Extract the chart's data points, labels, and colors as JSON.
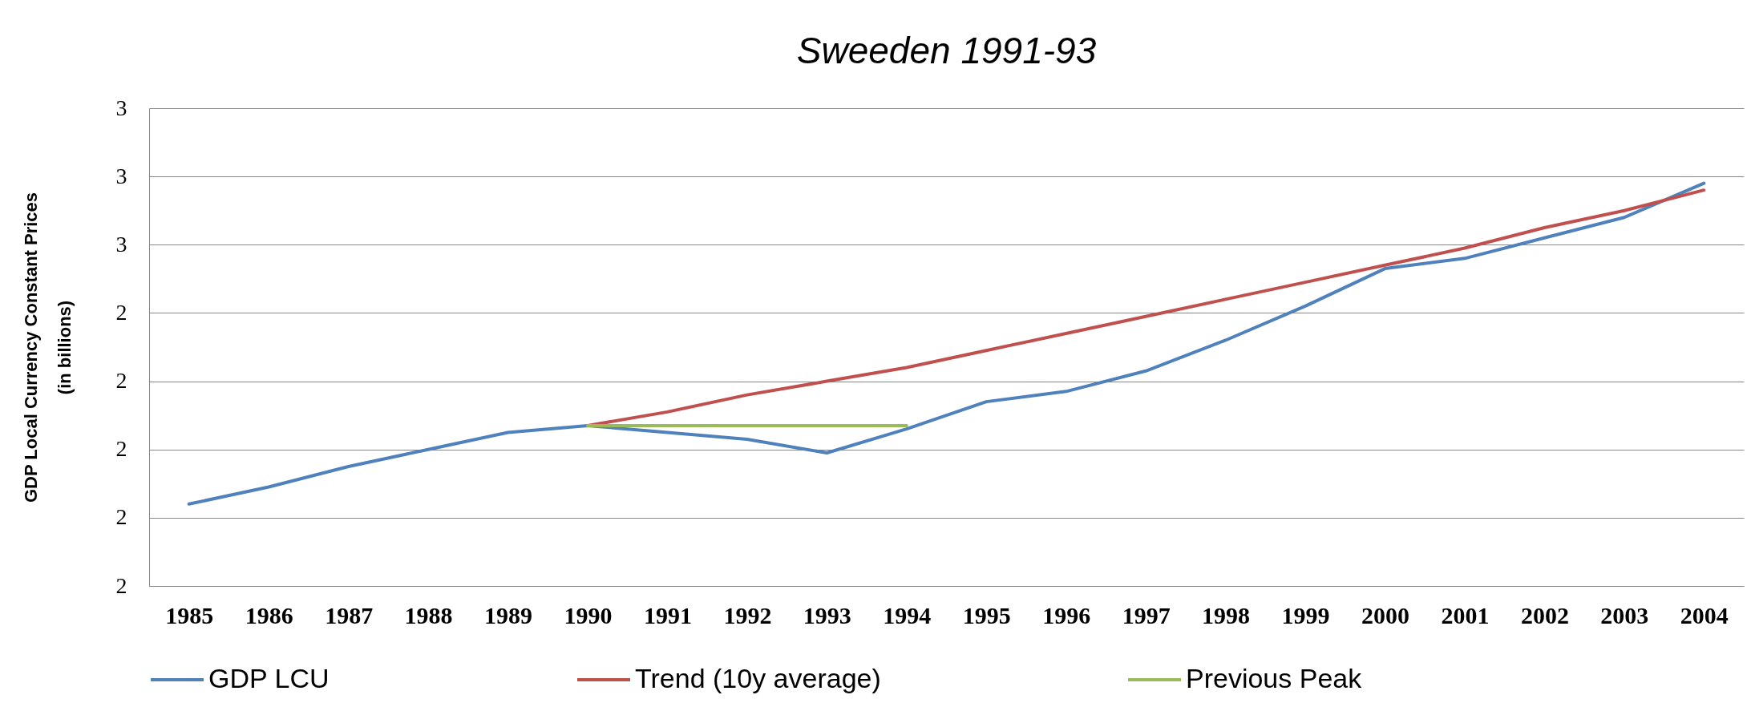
{
  "chart_data": {
    "type": "line",
    "title": "Sweeden 1991-93",
    "ylabel": "GDP Local Currency Constant Prices\n(in billions)",
    "categories": [
      "1985",
      "1986",
      "1987",
      "1988",
      "1989",
      "1990",
      "1991",
      "1992",
      "1993",
      "1994",
      "1995",
      "1996",
      "1997",
      "1998",
      "1999",
      "2000",
      "2001",
      "2002",
      "2003",
      "2004"
    ],
    "series": [
      {
        "name": "GDP LCU",
        "color": "#4f81bd",
        "values": [
          1.84,
          1.89,
          1.95,
          2.0,
          2.05,
          2.07,
          2.05,
          2.03,
          1.99,
          2.06,
          2.14,
          2.17,
          2.23,
          2.32,
          2.42,
          2.53,
          2.56,
          2.62,
          2.68,
          2.78
        ]
      },
      {
        "name": "Trend (10y average)",
        "color": "#c0504d",
        "values": [
          null,
          null,
          null,
          null,
          null,
          2.07,
          2.11,
          2.16,
          2.2,
          2.24,
          2.29,
          2.34,
          2.39,
          2.44,
          2.49,
          2.54,
          2.59,
          2.65,
          2.7,
          2.76
        ]
      },
      {
        "name": "Previous Peak",
        "color": "#9bbb59",
        "values": [
          null,
          null,
          null,
          null,
          null,
          2.07,
          2.07,
          2.07,
          2.07,
          2.07,
          null,
          null,
          null,
          null,
          null,
          null,
          null,
          null,
          null,
          null
        ]
      }
    ],
    "ylim": [
      1.6,
      3.0
    ],
    "yticks": [
      {
        "value": 1.6,
        "label": "2"
      },
      {
        "value": 1.8,
        "label": "2"
      },
      {
        "value": 2.0,
        "label": "2"
      },
      {
        "value": 2.2,
        "label": "2"
      },
      {
        "value": 2.4,
        "label": "2"
      },
      {
        "value": 2.6,
        "label": "3"
      },
      {
        "value": 2.8,
        "label": "3"
      },
      {
        "value": 3.0,
        "label": "3"
      }
    ],
    "grid": "y",
    "legend": "bottom"
  }
}
